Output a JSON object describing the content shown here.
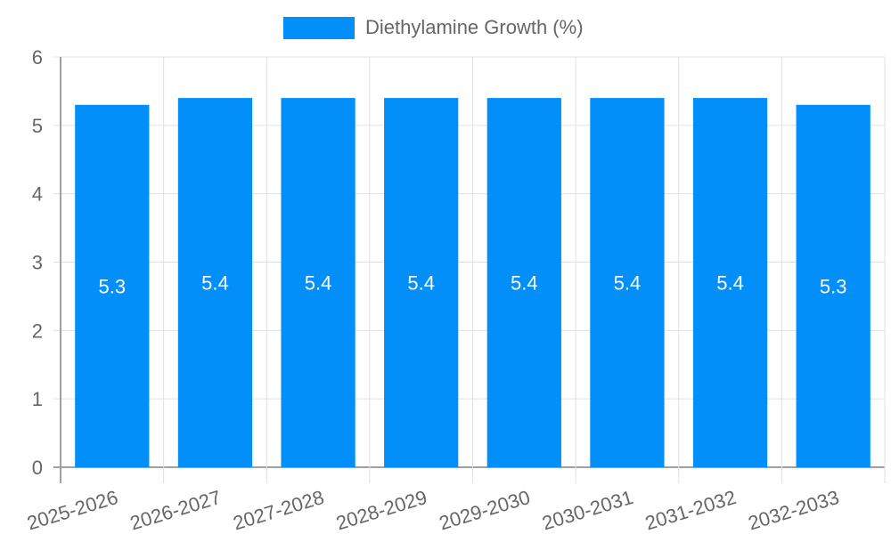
{
  "legend": {
    "label": "Diethylamine Growth (%)",
    "color": "#038ffa"
  },
  "colors": {
    "bar": "#038ffa",
    "grid": "#e0e0e0",
    "axis": "#a0a0a0",
    "tick_text": "#666666",
    "value_text": "#ffffff"
  },
  "chart_data": {
    "type": "bar",
    "title": "",
    "xlabel": "",
    "ylabel": "",
    "categories": [
      "2025-2026",
      "2026-2027",
      "2027-2028",
      "2028-2029",
      "2029-2030",
      "2030-2031",
      "2031-2032",
      "2032-2033"
    ],
    "series": [
      {
        "name": "Diethylamine Growth (%)",
        "values": [
          5.3,
          5.4,
          5.4,
          5.4,
          5.4,
          5.4,
          5.4,
          5.3
        ]
      }
    ],
    "ylim": [
      0,
      6
    ],
    "yticks": [
      0,
      1,
      2,
      3,
      4,
      5,
      6
    ],
    "grid": true,
    "legend_position": "top",
    "data_labels": true
  }
}
